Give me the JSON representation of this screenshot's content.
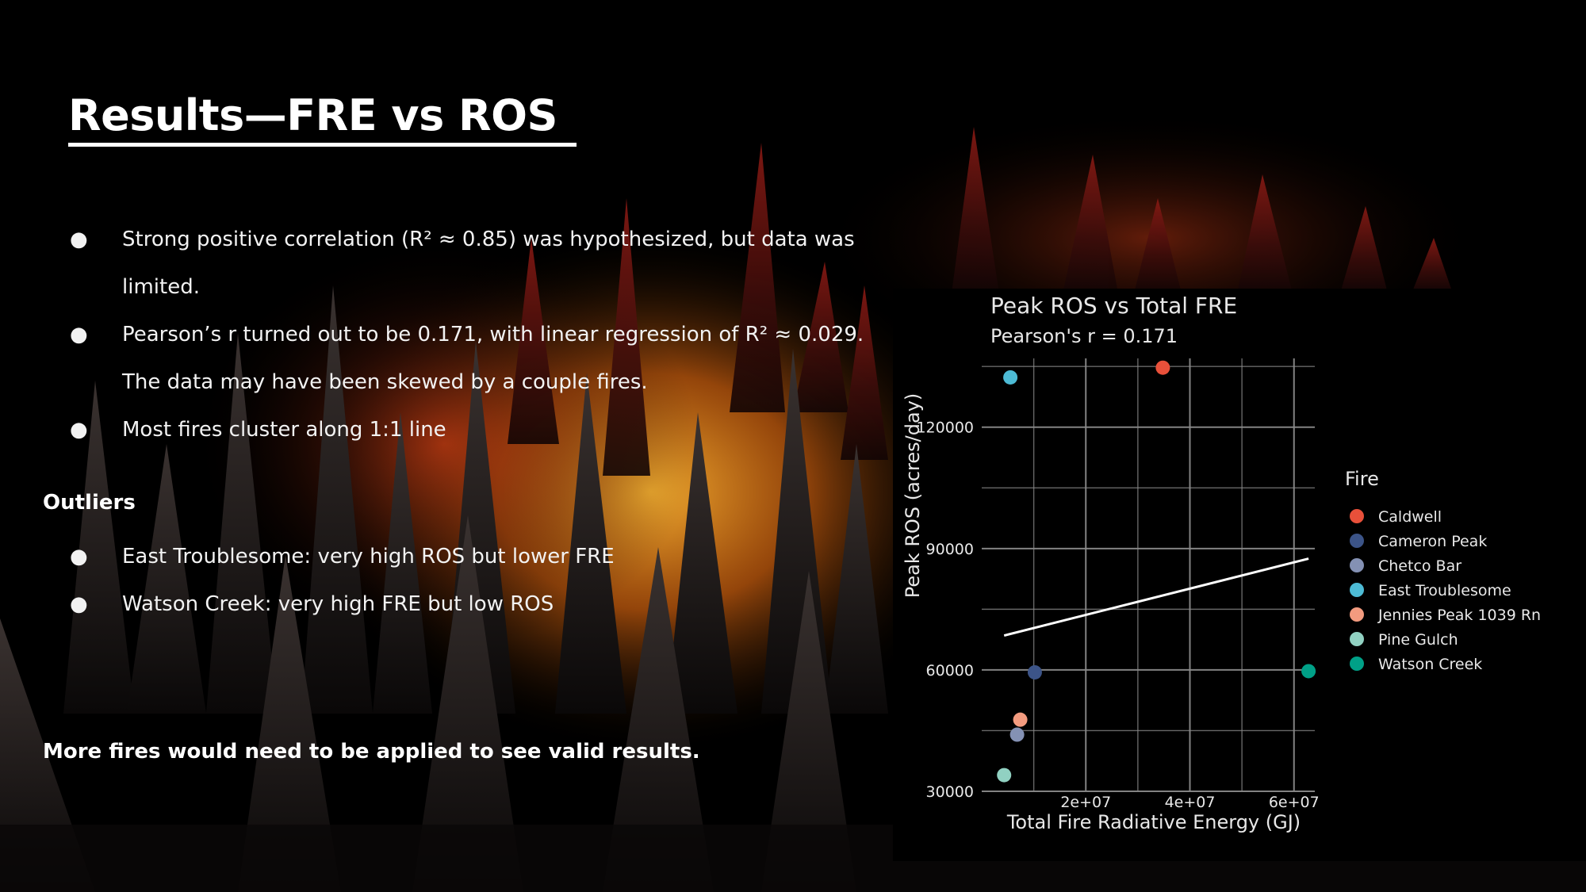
{
  "slide": {
    "title": "Results—FRE vs ROS",
    "bullets": [
      "Strong positive correlation (R² ≈ 0.85) was hypothesized, but data was limited.",
      "Pearson’s r turned out to be 0.171, with linear regression of R² ≈ 0.029. The data may have been skewed by a couple fires.",
      "Most fires cluster along 1:1 line"
    ],
    "outliers_heading": "Outliers",
    "outliers": [
      "East Troublesome: very high ROS but lower FRE",
      "Watson Creek: very high FRE but low ROS"
    ],
    "conclusion": "More fires would need to be applied to see valid results.",
    "bullet_symbol": "●"
  },
  "chart_data": {
    "type": "scatter",
    "title": "Peak ROS vs Total FRE",
    "subtitle": "Pearson's r = 0.171",
    "xlabel": "Total Fire Radiative Energy (GJ)",
    "ylabel": "Peak ROS (acres/day)",
    "xlim": [
      0,
      64000000
    ],
    "ylim": [
      30000,
      137000
    ],
    "x_ticks": [
      20000000,
      40000000,
      60000000
    ],
    "x_tick_labels": [
      "2e+07",
      "4e+07",
      "6e+07"
    ],
    "y_ticks": [
      30000,
      60000,
      90000,
      120000
    ],
    "y_tick_labels": [
      "30000",
      "60000",
      "90000",
      "120000"
    ],
    "grid": true,
    "legend_title": "Fire",
    "legend_position": "right",
    "series": [
      {
        "name": "Caldwell",
        "color": "#e8503a",
        "x": 34800000,
        "y": 134700
      },
      {
        "name": "Cameron Peak",
        "color": "#3c5488",
        "x": 10200000,
        "y": 59400
      },
      {
        "name": "Chetco Bar",
        "color": "#8491b4",
        "x": 6800000,
        "y": 44000
      },
      {
        "name": "East Troublesome",
        "color": "#4dbbd5",
        "x": 5500000,
        "y": 132300
      },
      {
        "name": "Jennies Peak 1039 Rn",
        "color": "#f39b7f",
        "x": 7400000,
        "y": 47700
      },
      {
        "name": "Pine Gulch",
        "color": "#91d1c2",
        "x": 4300000,
        "y": 34000
      },
      {
        "name": "Watson Creek",
        "color": "#00a087",
        "x": 62800000,
        "y": 59700
      }
    ],
    "trendline": {
      "x": [
        4300000,
        62800000
      ],
      "y": [
        68500,
        87500
      ],
      "color": "#ffffff"
    },
    "colors": {
      "background": "#000000",
      "grid": "#8a8a8a",
      "text": "#e8e8e8"
    }
  }
}
